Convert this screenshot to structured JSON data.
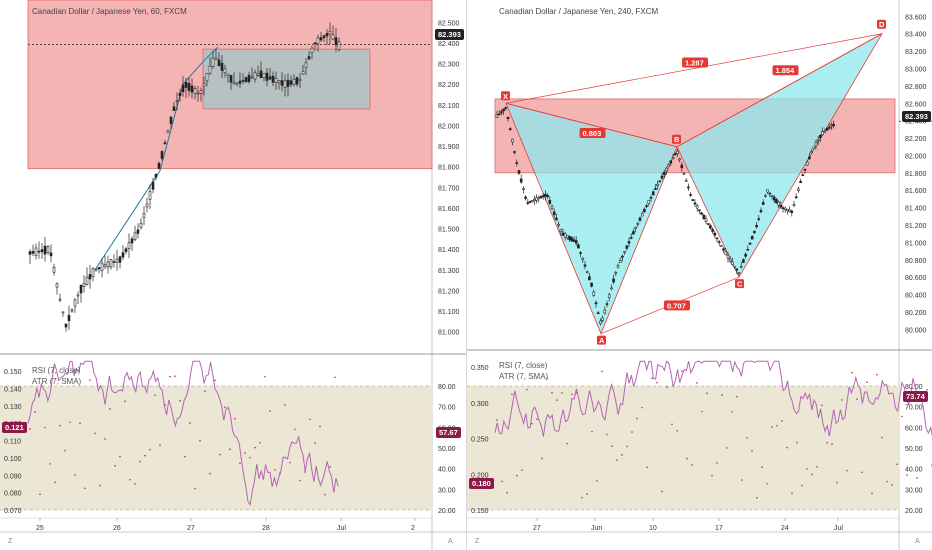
{
  "left": {
    "title": "Canadian Dollar / Japanese Yen, 60, FXCM",
    "price_axis": [
      "82.500",
      "82.400",
      "82.300",
      "82.200",
      "82.100",
      "82.000",
      "81.900",
      "81.800",
      "81.700",
      "81.600",
      "81.500",
      "81.400",
      "81.300",
      "81.200",
      "81.100",
      "81.000"
    ],
    "price_range": [
      80.95,
      82.55
    ],
    "price_tag": "82.393",
    "price_tag_value": 82.393,
    "rsi_label": "RSI (7, close)",
    "atr_label": "ATR (7, SMA)",
    "atr_axis": [
      "0.150",
      "0.140",
      "0.130",
      "0.120",
      "0.110",
      "0.100",
      "0.090",
      "0.080",
      "0.070"
    ],
    "atr_tag": "0.121",
    "rsi_axis": [
      "80.00",
      "70.00",
      "60.00",
      "50.00",
      "40.00",
      "30.00",
      "20.00"
    ],
    "rsi_tag": "57.67",
    "time_axis": [
      "25",
      "26",
      "27",
      "28",
      "Jul",
      "2"
    ],
    "corner_z": "Z",
    "corner_a": "A"
  },
  "right": {
    "title": "Canadian Dollar / Japanese Yen, 240, FXCM",
    "price_axis": [
      "83.600",
      "83.400",
      "83.200",
      "83.000",
      "82.800",
      "82.600",
      "82.400",
      "82.200",
      "82.000",
      "81.800",
      "81.600",
      "81.400",
      "81.200",
      "81.000",
      "80.800",
      "80.600",
      "80.400",
      "80.200",
      "80.000"
    ],
    "price_range": [
      79.9,
      83.65
    ],
    "price_tag": "82.393",
    "price_tag_value": 82.393,
    "pattern_points": [
      {
        "label": "X",
        "value": 82.6
      },
      {
        "label": "A",
        "value": 79.95
      },
      {
        "label": "B",
        "value": 82.1
      },
      {
        "label": "C",
        "value": 80.6
      },
      {
        "label": "D",
        "value": 83.4
      }
    ],
    "ratios": [
      "1.287",
      "1.854",
      "0.803",
      "0.707"
    ],
    "rsi_label": "RSI (7, close)",
    "atr_label": "ATR (7, SMA)",
    "atr_axis": [
      "0.350",
      "0.300",
      "0.250",
      "0.200",
      "0.150"
    ],
    "atr_tag": "0.180",
    "rsi_axis": [
      "80.00",
      "70.00",
      "60.00",
      "50.00",
      "40.00",
      "30.00",
      "20.00"
    ],
    "rsi_tag": "73.74",
    "time_axis": [
      "27",
      "Jun",
      "10",
      "17",
      "24",
      "Jul"
    ],
    "corner_z": "Z",
    "corner_a": "A"
  },
  "colors": {
    "zone_red": "#f4b4b4",
    "zone_red_border": "#e05a5a",
    "harmonic_fill": "#8ee8ee",
    "candle": "#222222",
    "rsi_line": "#b266b2",
    "rsi_band": "#ece6d4",
    "tag_dark": "#222222",
    "tag_purple": "#8b1a4a",
    "point_red": "#e53935"
  }
}
